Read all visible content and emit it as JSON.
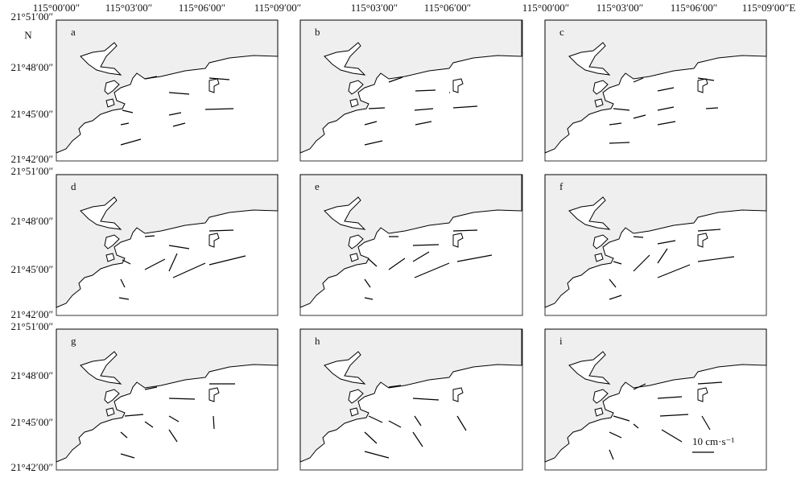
{
  "longitude_labels": [
    "115°00′00″",
    "115°03′00″",
    "115°06′00″",
    "115°09′00″",
    "115°03′00″",
    "115°06′00″",
    "115°00′00″",
    "115°03′00″",
    "115°06′00″",
    "115°09′00″E"
  ],
  "latitude_labels": [
    "21°51′00″",
    "21°48′00″",
    "21°45′00″",
    "21°42′00″",
    "21°51′00″",
    "21°48′00″",
    "21°45′00″",
    "21°42′00″",
    "21°51′00″",
    "21°48′00″",
    "21°45′00″",
    "21°42′00″"
  ],
  "north": "N",
  "panels": [
    "a",
    "b",
    "c",
    "d",
    "e",
    "f",
    "g",
    "h",
    "i"
  ],
  "scale_label": "10 cm·s⁻¹"
}
